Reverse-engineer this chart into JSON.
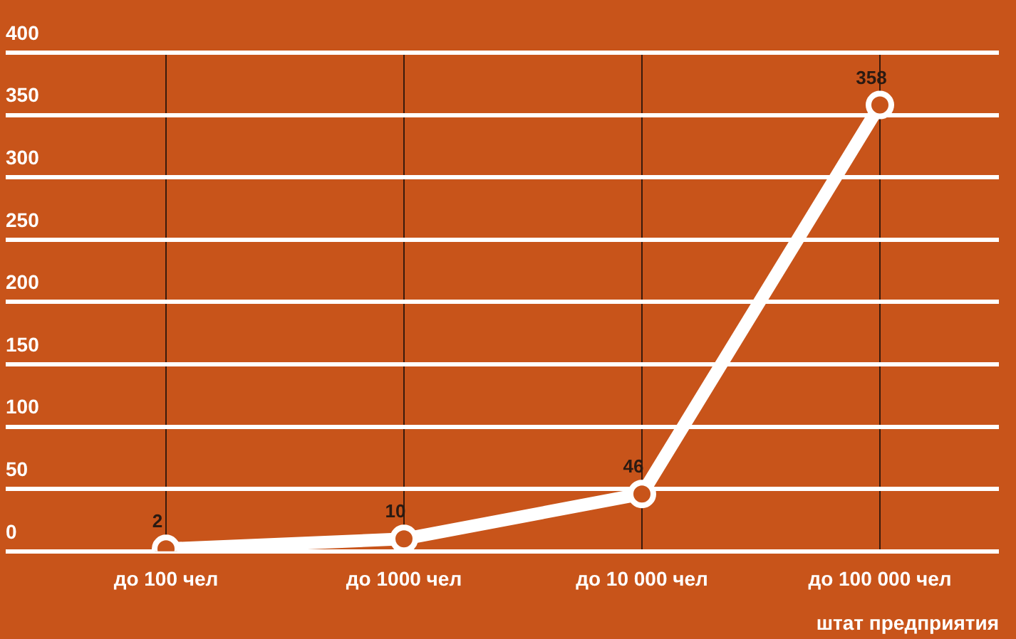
{
  "chart_data": {
    "type": "line",
    "categories": [
      "до 100 чел",
      "до 1000 чел",
      "до 10 000 чел",
      "до 100 000 чел"
    ],
    "series": [
      {
        "color": "#ffffff",
        "values": [
          2,
          10,
          46,
          358
        ]
      }
    ],
    "xlabel": "штат предприятия",
    "ylim": [
      0,
      400
    ],
    "yticks": [
      0,
      50,
      100,
      150,
      200,
      250,
      300,
      350,
      400
    ],
    "grid": true,
    "legend": false,
    "marker": "circle",
    "line_style": "solid",
    "data_labels": true
  }
}
